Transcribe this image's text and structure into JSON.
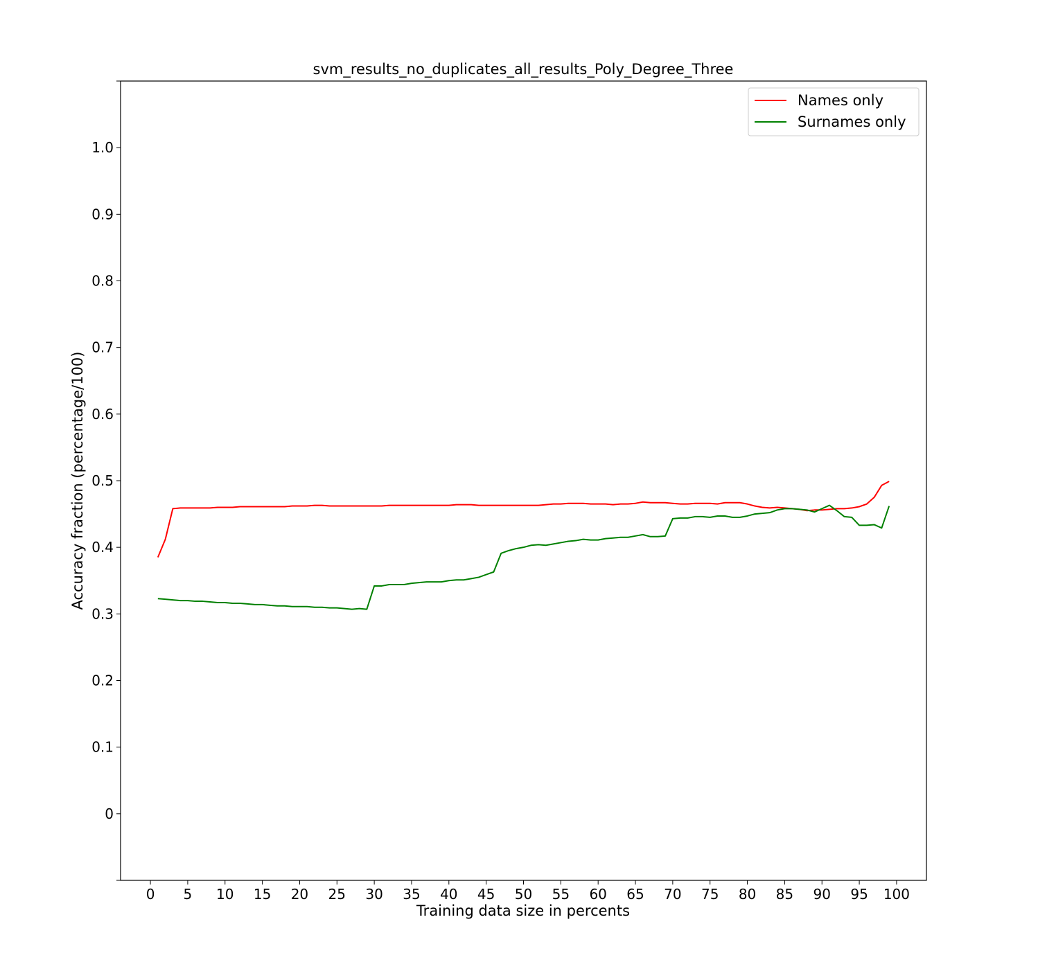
{
  "chart_data": {
    "type": "line",
    "title": "svm_results_no_duplicates_all_results_Poly_Degree_Three",
    "xlabel": "Training data size in percents",
    "ylabel": "Accuracy fraction (percentage/100)",
    "xlim": [
      -4,
      104
    ],
    "ylim": [
      -0.1,
      1.1
    ],
    "xticks": [
      0,
      5,
      10,
      15,
      20,
      25,
      30,
      35,
      40,
      45,
      50,
      55,
      60,
      65,
      70,
      75,
      80,
      85,
      90,
      95,
      100
    ],
    "xtick_labels": [
      "0",
      "5",
      "10",
      "15",
      "20",
      "25",
      "30",
      "35",
      "40",
      "45",
      "50",
      "55",
      "60",
      "65",
      "70",
      "75",
      "80",
      "85",
      "90",
      "95",
      "100"
    ],
    "yticks": [
      0,
      0.1,
      0.2,
      0.3,
      0.4,
      0.5,
      0.6,
      0.7,
      0.8,
      0.9,
      1.0
    ],
    "ytick_labels": [
      "0",
      "0.1",
      "0.2",
      "0.3",
      "0.4",
      "0.5",
      "0.6",
      "0.7",
      "0.8",
      "0.9",
      "1.0"
    ],
    "grid": false,
    "legend_position": "top-right",
    "x": [
      1,
      2,
      3,
      4,
      5,
      6,
      7,
      8,
      9,
      10,
      11,
      12,
      13,
      14,
      15,
      16,
      17,
      18,
      19,
      20,
      21,
      22,
      23,
      24,
      25,
      26,
      27,
      28,
      29,
      30,
      31,
      32,
      33,
      34,
      35,
      36,
      37,
      38,
      39,
      40,
      41,
      42,
      43,
      44,
      45,
      46,
      47,
      48,
      49,
      50,
      51,
      52,
      53,
      54,
      55,
      56,
      57,
      58,
      59,
      60,
      61,
      62,
      63,
      64,
      65,
      66,
      67,
      68,
      69,
      70,
      71,
      72,
      73,
      74,
      75,
      76,
      77,
      78,
      79,
      80,
      81,
      82,
      83,
      84,
      85,
      86,
      87,
      88,
      89,
      90,
      91,
      92,
      93,
      94,
      95,
      96,
      97,
      98,
      99
    ],
    "series": [
      {
        "name": "Names only",
        "color": "#ff0000",
        "values": [
          0.385,
          0.412,
          0.458,
          0.459,
          0.459,
          0.459,
          0.459,
          0.459,
          0.46,
          0.46,
          0.46,
          0.461,
          0.461,
          0.461,
          0.461,
          0.461,
          0.461,
          0.461,
          0.462,
          0.462,
          0.462,
          0.463,
          0.463,
          0.462,
          0.462,
          0.462,
          0.462,
          0.462,
          0.462,
          0.462,
          0.462,
          0.463,
          0.463,
          0.463,
          0.463,
          0.463,
          0.463,
          0.463,
          0.463,
          0.463,
          0.464,
          0.464,
          0.464,
          0.463,
          0.463,
          0.463,
          0.463,
          0.463,
          0.463,
          0.463,
          0.463,
          0.463,
          0.464,
          0.465,
          0.465,
          0.466,
          0.466,
          0.466,
          0.465,
          0.465,
          0.465,
          0.464,
          0.465,
          0.465,
          0.466,
          0.468,
          0.467,
          0.467,
          0.467,
          0.466,
          0.465,
          0.465,
          0.466,
          0.466,
          0.466,
          0.465,
          0.467,
          0.467,
          0.467,
          0.465,
          0.462,
          0.46,
          0.459,
          0.46,
          0.459,
          0.458,
          0.457,
          0.455,
          0.456,
          0.456,
          0.457,
          0.458,
          0.458,
          0.459,
          0.461,
          0.465,
          0.475,
          0.493,
          0.499
        ]
      },
      {
        "name": "Surnames only",
        "color": "#008000",
        "values": [
          0.323,
          0.322,
          0.321,
          0.32,
          0.32,
          0.319,
          0.319,
          0.318,
          0.317,
          0.317,
          0.316,
          0.316,
          0.315,
          0.314,
          0.314,
          0.313,
          0.312,
          0.312,
          0.311,
          0.311,
          0.311,
          0.31,
          0.31,
          0.309,
          0.309,
          0.308,
          0.307,
          0.308,
          0.307,
          0.342,
          0.342,
          0.344,
          0.344,
          0.344,
          0.346,
          0.347,
          0.348,
          0.348,
          0.348,
          0.35,
          0.351,
          0.351,
          0.353,
          0.355,
          0.359,
          0.363,
          0.391,
          0.395,
          0.398,
          0.4,
          0.403,
          0.404,
          0.403,
          0.405,
          0.407,
          0.409,
          0.41,
          0.412,
          0.411,
          0.411,
          0.413,
          0.414,
          0.415,
          0.415,
          0.417,
          0.419,
          0.416,
          0.416,
          0.417,
          0.443,
          0.444,
          0.444,
          0.446,
          0.446,
          0.445,
          0.447,
          0.447,
          0.445,
          0.445,
          0.447,
          0.45,
          0.451,
          0.452,
          0.456,
          0.458,
          0.458,
          0.457,
          0.456,
          0.453,
          0.458,
          0.463,
          0.455,
          0.446,
          0.445,
          0.433,
          0.433,
          0.434,
          0.429,
          0.462
        ]
      }
    ]
  }
}
